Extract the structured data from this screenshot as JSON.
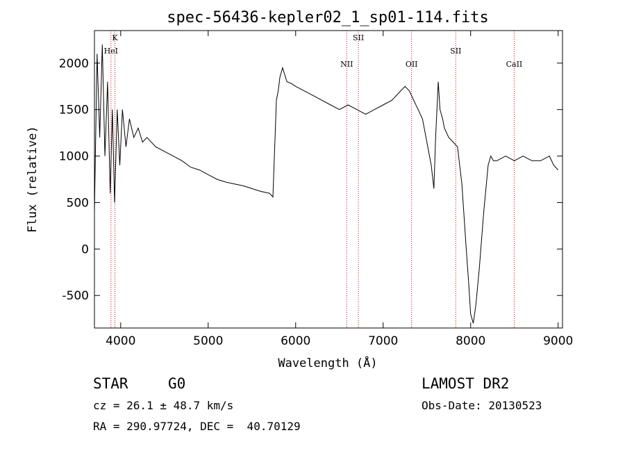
{
  "chart_data": {
    "type": "line",
    "title": "spec-56436-kepler02_1_sp01-114.fits",
    "xlabel": "Wavelength (Å)",
    "ylabel": "Flux (relative)",
    "xlim": [
      3700,
      9050
    ],
    "ylim": [
      -850,
      2350
    ],
    "x_ticks": [
      4000,
      5000,
      6000,
      7000,
      8000,
      9000
    ],
    "y_ticks": [
      -500,
      0,
      500,
      1000,
      1500,
      2000
    ],
    "grid": false,
    "line_color": "#000000",
    "marker_color": "#cc0000",
    "spectral_lines": [
      {
        "name": "K",
        "wavelength": 3934
      },
      {
        "name": "HeI",
        "wavelength": 3889
      },
      {
        "name": "NII",
        "wavelength": 6584
      },
      {
        "name": "SII",
        "wavelength": 6717
      },
      {
        "name": "OII",
        "wavelength": 7325
      },
      {
        "name": "SII",
        "wavelength": 7830
      },
      {
        "name": "CaII",
        "wavelength": 8498
      }
    ],
    "series": [
      {
        "values_x": [
          3700,
          3730,
          3760,
          3790,
          3820,
          3850,
          3880,
          3905,
          3930,
          3960,
          3990,
          4020,
          4060,
          4100,
          4150,
          4200,
          4250,
          4300,
          4400,
          4500,
          4600,
          4700,
          4800,
          4900,
          5000,
          5100,
          5200,
          5300,
          5400,
          5500,
          5600,
          5700,
          5740,
          5780,
          5800,
          5820,
          5850,
          5900,
          5950,
          6000,
          6100,
          6200,
          6300,
          6400,
          6500,
          6600,
          6700,
          6800,
          6900,
          7000,
          7100,
          7200,
          7250,
          7300,
          7350,
          7400,
          7450,
          7500,
          7550,
          7580,
          7600,
          7630,
          7650,
          7680,
          7700,
          7750,
          7800,
          7850,
          7900,
          7950,
          7980,
          8000,
          8030,
          8060,
          8100,
          8150,
          8200,
          8230,
          8260,
          8300,
          8400,
          8500,
          8600,
          8700,
          8800,
          8900,
          8950,
          9000
        ],
        "values_y": [
          400,
          2100,
          1200,
          2200,
          1000,
          1800,
          600,
          1500,
          500,
          1500,
          900,
          1500,
          1100,
          1400,
          1200,
          1300,
          1150,
          1200,
          1100,
          1050,
          1000,
          950,
          880,
          850,
          800,
          750,
          720,
          700,
          680,
          650,
          620,
          600,
          560,
          1600,
          1700,
          1850,
          1950,
          1800,
          1780,
          1750,
          1700,
          1650,
          1600,
          1550,
          1500,
          1550,
          1500,
          1450,
          1500,
          1550,
          1600,
          1700,
          1750,
          1700,
          1600,
          1500,
          1400,
          1150,
          900,
          650,
          1200,
          1800,
          1500,
          1400,
          1300,
          1200,
          1150,
          1100,
          700,
          0,
          -400,
          -700,
          -800,
          -600,
          -200,
          400,
          900,
          1000,
          950,
          950,
          1000,
          950,
          1000,
          950,
          950,
          1000,
          900,
          850
        ]
      }
    ]
  },
  "info": {
    "class": "STAR",
    "subclass": "G0",
    "survey": "LAMOST DR2",
    "cz": "cz = 26.1 ± 48.7 km/s",
    "obs_date": "Obs-Date: 20130523",
    "coords": "RA = 290.97724, DEC =  40.70129"
  }
}
